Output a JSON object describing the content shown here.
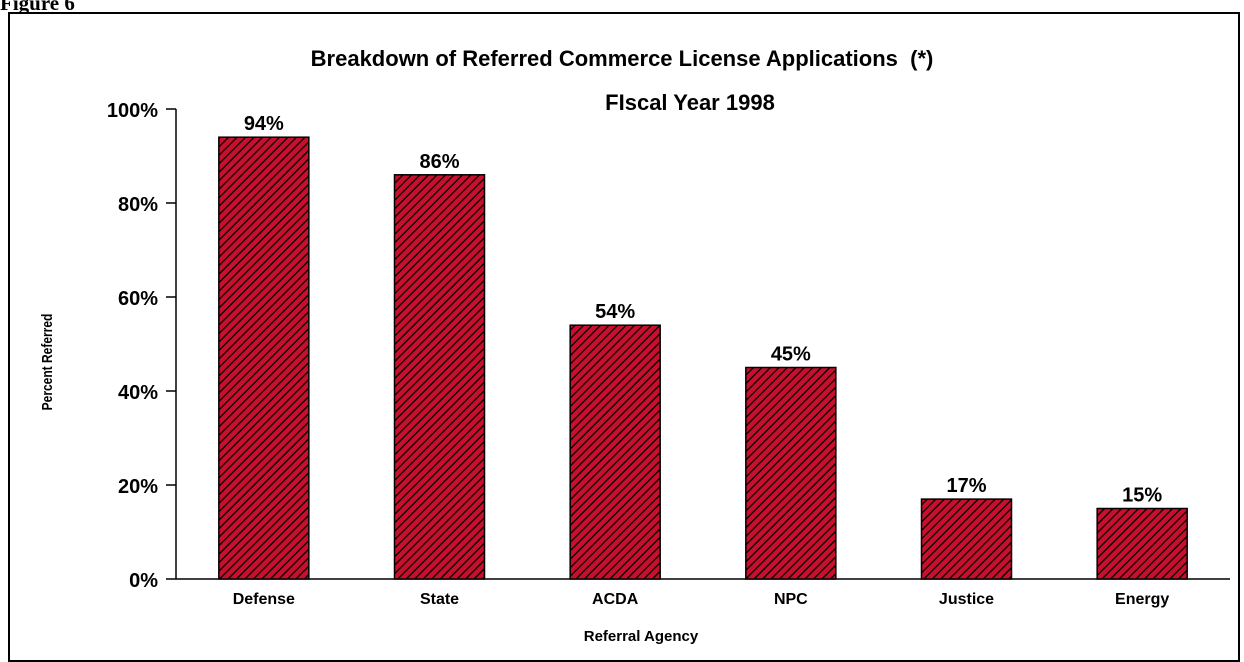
{
  "figure_label": "Figure 6",
  "chart_data": {
    "type": "bar",
    "title": "Breakdown of Referred Commerce License Applications  (*)",
    "subtitle": "FIscal Year 1998",
    "xlabel": "Referral Agency",
    "ylabel": "Percent Referred",
    "categories": [
      "Defense",
      "State",
      "ACDA",
      "NPC",
      "Justice",
      "Energy"
    ],
    "values": [
      94,
      86,
      54,
      45,
      17,
      15
    ],
    "data_labels": [
      "94%",
      "86%",
      "54%",
      "45%",
      "17%",
      "15%"
    ],
    "ylim": [
      0,
      100
    ],
    "yticks": [
      0,
      20,
      40,
      60,
      80,
      100
    ],
    "ytick_labels": [
      "0%",
      "20%",
      "40%",
      "60%",
      "80%",
      "100%"
    ],
    "grid": false,
    "legend": "none",
    "bar_fill": "#c8102e",
    "bar_hatch": "#000000"
  }
}
